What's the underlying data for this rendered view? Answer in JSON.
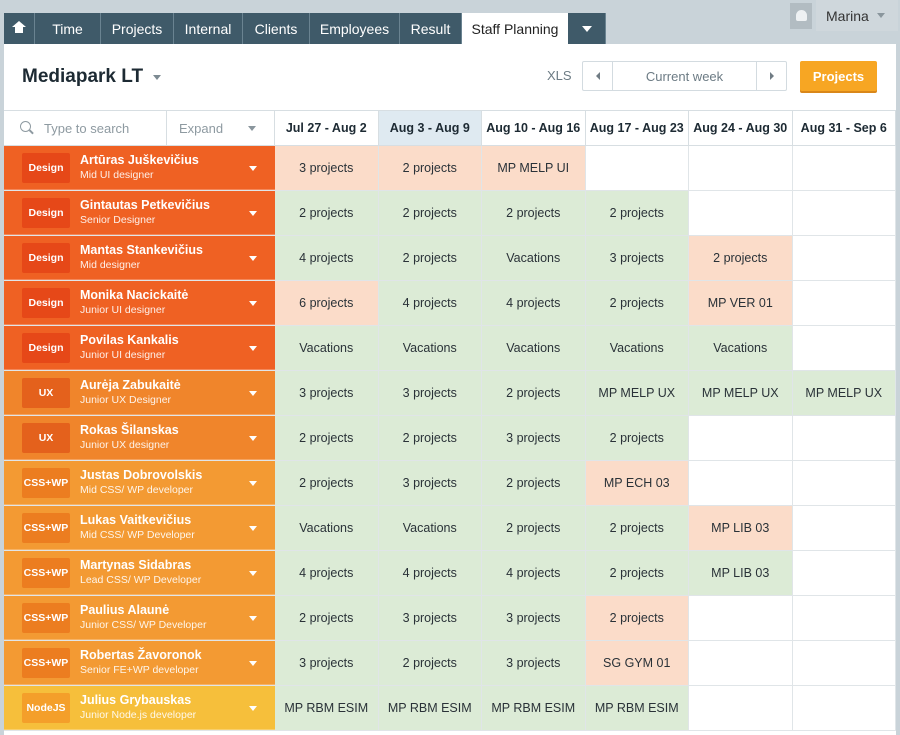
{
  "nav": {
    "tabs": [
      "Time",
      "Projects",
      "Internal",
      "Clients",
      "Employees",
      "Result",
      "Staff Planning"
    ],
    "active_tab": "Staff Planning",
    "user": "Marina"
  },
  "toolbar": {
    "company": "Mediapark LT",
    "xls": "XLS",
    "week_label": "Current week",
    "projects_button": "Projects"
  },
  "grid": {
    "search_placeholder": "Type to search",
    "expand_label": "Expand",
    "weeks": [
      "Jul 27 - Aug 2",
      "Aug 3 - Aug 9",
      "Aug 10 - Aug 16",
      "Aug 17 - Aug 23",
      "Aug 24 - Aug 30",
      "Aug 31 - Sep 6"
    ],
    "current_week_index": 1,
    "colors": {
      "design_row": "#ef6123",
      "design_badge": "#e64818",
      "ux_row": "#f0852b",
      "ux_badge": "#e4611c",
      "css_row": "#f39a33",
      "css_badge": "#ec7d20",
      "node_row": "#f6bf3b",
      "node_badge": "#f49f2a",
      "busy": "#dcebd6",
      "overbooked": "#fbdcc9"
    },
    "people": [
      {
        "badge": "Design",
        "group": "design",
        "name": "Artūras Juškevičius",
        "role": "Mid UI designer",
        "cells": [
          {
            "t": "3 projects",
            "s": "o"
          },
          {
            "t": "2 projects",
            "s": "o"
          },
          {
            "t": "MP MELP UI",
            "s": "o"
          },
          {
            "t": "",
            "s": "e"
          },
          {
            "t": "",
            "s": "e"
          },
          {
            "t": "",
            "s": "e"
          }
        ]
      },
      {
        "badge": "Design",
        "group": "design",
        "name": "Gintautas Petkevičius",
        "role": "Senior Designer",
        "cells": [
          {
            "t": "2 projects",
            "s": "g"
          },
          {
            "t": "2 projects",
            "s": "g"
          },
          {
            "t": "2 projects",
            "s": "g"
          },
          {
            "t": "2 projects",
            "s": "g"
          },
          {
            "t": "",
            "s": "e"
          },
          {
            "t": "",
            "s": "e"
          }
        ]
      },
      {
        "badge": "Design",
        "group": "design",
        "name": "Mantas Stankevičius",
        "role": "Mid designer",
        "cells": [
          {
            "t": "4 projects",
            "s": "g"
          },
          {
            "t": "2 projects",
            "s": "g"
          },
          {
            "t": "Vacations",
            "s": "g"
          },
          {
            "t": "3 projects",
            "s": "g"
          },
          {
            "t": "2 projects",
            "s": "o"
          },
          {
            "t": "",
            "s": "e"
          }
        ]
      },
      {
        "badge": "Design",
        "group": "design",
        "name": "Monika Nacickaitė",
        "role": "Junior UI designer",
        "cells": [
          {
            "t": "6 projects",
            "s": "o"
          },
          {
            "t": "4 projects",
            "s": "g"
          },
          {
            "t": "4 projects",
            "s": "g"
          },
          {
            "t": "2 projects",
            "s": "g"
          },
          {
            "t": "MP VER 01",
            "s": "o"
          },
          {
            "t": "",
            "s": "e"
          }
        ]
      },
      {
        "badge": "Design",
        "group": "design",
        "name": "Povilas Kankalis",
        "role": "Junior UI designer",
        "cells": [
          {
            "t": "Vacations",
            "s": "g"
          },
          {
            "t": "Vacations",
            "s": "g"
          },
          {
            "t": "Vacations",
            "s": "g"
          },
          {
            "t": "Vacations",
            "s": "g"
          },
          {
            "t": "Vacations",
            "s": "g"
          },
          {
            "t": "",
            "s": "e"
          }
        ]
      },
      {
        "badge": "UX",
        "group": "ux",
        "name": "Aurėja Zabukaitė",
        "role": "Junior UX Designer",
        "cells": [
          {
            "t": "3 projects",
            "s": "g"
          },
          {
            "t": "3 projects",
            "s": "g"
          },
          {
            "t": "2 projects",
            "s": "g"
          },
          {
            "t": "MP MELP UX",
            "s": "g"
          },
          {
            "t": "MP MELP UX",
            "s": "g"
          },
          {
            "t": "MP MELP UX",
            "s": "g"
          }
        ]
      },
      {
        "badge": "UX",
        "group": "ux",
        "name": "Rokas Šilanskas",
        "role": "Junior UX designer",
        "cells": [
          {
            "t": "2 projects",
            "s": "g"
          },
          {
            "t": "2 projects",
            "s": "g"
          },
          {
            "t": "3 projects",
            "s": "g"
          },
          {
            "t": "2 projects",
            "s": "g"
          },
          {
            "t": "",
            "s": "e"
          },
          {
            "t": "",
            "s": "e"
          }
        ]
      },
      {
        "badge": "CSS+WP",
        "group": "css",
        "name": "Justas Dobrovolskis",
        "role": "Mid CSS/ WP developer",
        "cells": [
          {
            "t": "2 projects",
            "s": "g"
          },
          {
            "t": "3 projects",
            "s": "g"
          },
          {
            "t": "2 projects",
            "s": "g"
          },
          {
            "t": "MP ECH 03",
            "s": "o"
          },
          {
            "t": "",
            "s": "e"
          },
          {
            "t": "",
            "s": "e"
          }
        ]
      },
      {
        "badge": "CSS+WP",
        "group": "css",
        "name": "Lukas Vaitkevičius",
        "role": "Mid CSS/ WP Developer",
        "cells": [
          {
            "t": "Vacations",
            "s": "g"
          },
          {
            "t": "Vacations",
            "s": "g"
          },
          {
            "t": "2 projects",
            "s": "g"
          },
          {
            "t": "2 projects",
            "s": "g"
          },
          {
            "t": "MP LIB 03",
            "s": "o"
          },
          {
            "t": "",
            "s": "e"
          }
        ]
      },
      {
        "badge": "CSS+WP",
        "group": "css",
        "name": "Martynas Sidabras",
        "role": "Lead CSS/ WP Developer",
        "cells": [
          {
            "t": "4 projects",
            "s": "g"
          },
          {
            "t": "4 projects",
            "s": "g"
          },
          {
            "t": "4 projects",
            "s": "g"
          },
          {
            "t": "2 projects",
            "s": "g"
          },
          {
            "t": "MP LIB 03",
            "s": "g"
          },
          {
            "t": "",
            "s": "e"
          }
        ]
      },
      {
        "badge": "CSS+WP",
        "group": "css",
        "name": "Paulius Alaunė",
        "role": "Junior CSS/ WP Developer",
        "cells": [
          {
            "t": "2 projects",
            "s": "g"
          },
          {
            "t": "3 projects",
            "s": "g"
          },
          {
            "t": "3 projects",
            "s": "g"
          },
          {
            "t": "2 projects",
            "s": "o"
          },
          {
            "t": "",
            "s": "e"
          },
          {
            "t": "",
            "s": "e"
          }
        ]
      },
      {
        "badge": "CSS+WP",
        "group": "css",
        "name": "Robertas Žavoronok",
        "role": "Senior FE+WP developer",
        "cells": [
          {
            "t": "3 projects",
            "s": "g"
          },
          {
            "t": "2 projects",
            "s": "g"
          },
          {
            "t": "3 projects",
            "s": "g"
          },
          {
            "t": "SG GYM 01",
            "s": "o"
          },
          {
            "t": "",
            "s": "e"
          },
          {
            "t": "",
            "s": "e"
          }
        ]
      },
      {
        "badge": "NodeJS",
        "group": "node",
        "name": "Julius Grybauskas",
        "role": "Junior Node.js developer",
        "cells": [
          {
            "t": "MP RBM ESIM",
            "s": "g"
          },
          {
            "t": "MP RBM ESIM",
            "s": "g"
          },
          {
            "t": "MP RBM ESIM",
            "s": "g"
          },
          {
            "t": "MP RBM ESIM",
            "s": "g"
          },
          {
            "t": "",
            "s": "e"
          },
          {
            "t": "",
            "s": "e"
          }
        ]
      }
    ]
  }
}
